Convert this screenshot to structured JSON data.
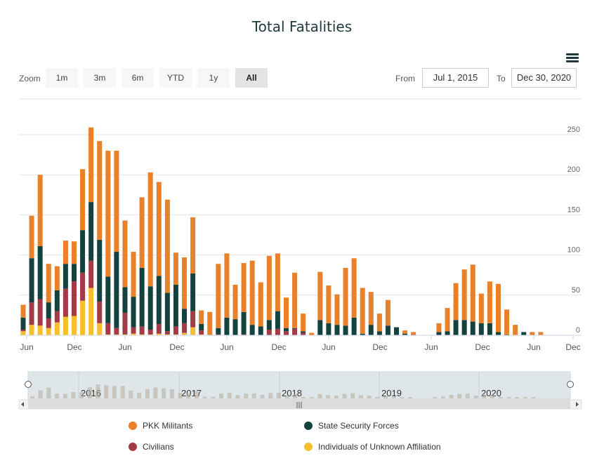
{
  "title": "Total Fatalities",
  "zoom": {
    "label": "Zoom",
    "buttons": [
      "1m",
      "3m",
      "6m",
      "YTD",
      "1y",
      "All"
    ],
    "active": "All"
  },
  "range": {
    "from_label": "From",
    "from_value": "Jul 1, 2015",
    "to_label": "To",
    "to_value": "Dec 30, 2020"
  },
  "menu_icon": "hamburger-menu-icon",
  "colors": {
    "pkk": "#e8812a",
    "state": "#14433f",
    "civilians": "#a23b45",
    "unknown": "#f7bf2e"
  },
  "chart_data": {
    "type": "bar",
    "stacked": true,
    "title": "Total Fatalities",
    "x_start": "2015-07",
    "x_labels": [
      "Jun",
      "Dec",
      "Jun",
      "Dec",
      "Jun",
      "Dec",
      "Jun",
      "Dec",
      "Jun",
      "Dec",
      "Jun",
      "Dec"
    ],
    "ylim": [
      0,
      250
    ],
    "yticks": [
      0,
      50,
      100,
      150,
      200,
      250
    ],
    "grid": true,
    "legend_position": "bottom",
    "series": [
      {
        "name": "Individuals of Unknown Affiliation",
        "color": "#f7bf2e",
        "values": [
          5,
          13,
          12,
          9,
          16,
          23,
          24,
          43,
          59,
          15,
          1,
          1,
          1,
          2,
          1,
          1,
          2,
          1,
          1,
          3,
          10,
          1,
          0,
          0,
          0,
          0,
          0,
          0,
          0,
          0,
          0,
          0,
          0,
          0,
          0,
          0,
          0,
          0,
          0,
          0,
          0,
          0,
          0,
          0,
          0,
          0,
          0,
          0,
          0,
          0,
          0,
          0,
          0,
          0,
          0,
          0,
          0,
          0,
          0,
          0,
          0,
          0,
          0,
          0,
          0,
          0,
          0
        ]
      },
      {
        "name": "Civilians",
        "color": "#a23b45",
        "values": [
          2,
          28,
          33,
          12,
          14,
          35,
          43,
          35,
          34,
          27,
          14,
          8,
          27,
          8,
          10,
          6,
          12,
          4,
          10,
          12,
          20,
          5,
          0,
          1,
          0,
          0,
          1,
          0,
          0,
          7,
          8,
          5,
          8,
          3,
          0,
          0,
          0,
          0,
          0,
          0,
          0,
          0,
          0,
          0,
          0,
          0,
          1,
          0,
          0,
          0,
          0,
          0,
          0,
          0,
          0,
          0,
          0,
          0,
          0,
          0,
          0,
          0,
          0,
          0,
          0,
          0,
          0
        ]
      },
      {
        "name": "State Security Forces",
        "color": "#14433f",
        "values": [
          15,
          55,
          66,
          20,
          26,
          31,
          22,
          53,
          73,
          77,
          58,
          95,
          32,
          38,
          73,
          54,
          60,
          48,
          52,
          18,
          47,
          8,
          0,
          8,
          22,
          20,
          28,
          13,
          11,
          12,
          22,
          4,
          1,
          2,
          0,
          19,
          15,
          13,
          12,
          22,
          2,
          13,
          5,
          12,
          10,
          2,
          0,
          0,
          0,
          4,
          5,
          19,
          19,
          17,
          15,
          15,
          4,
          1,
          0,
          4,
          0,
          0,
          0,
          0,
          0,
          0,
          0
        ]
      },
      {
        "name": "PKK Militants",
        "color": "#e8812a",
        "values": [
          16,
          53,
          89,
          48,
          30,
          29,
          28,
          76,
          93,
          123,
          157,
          126,
          83,
          56,
          88,
          142,
          117,
          116,
          40,
          64,
          70,
          17,
          29,
          80,
          80,
          43,
          61,
          80,
          55,
          80,
          72,
          38,
          69,
          22,
          3,
          60,
          47,
          38,
          72,
          74,
          57,
          41,
          22,
          32,
          0,
          4,
          3,
          0,
          0,
          11,
          29,
          46,
          63,
          71,
          37,
          52,
          60,
          31,
          13,
          0,
          4,
          4,
          0,
          0,
          0,
          0,
          0
        ]
      }
    ]
  },
  "navigator": {
    "year_labels": [
      "2016",
      "2017",
      "2018",
      "2019",
      "2020"
    ],
    "scroll_grip": "|||"
  },
  "legend": [
    {
      "label": "PKK Militants",
      "color": "#e8812a"
    },
    {
      "label": "State Security Forces",
      "color": "#14433f"
    },
    {
      "label": "Civilians",
      "color": "#a23b45"
    },
    {
      "label": "Individuals of Unknown Affiliation",
      "color": "#f7bf2e"
    }
  ]
}
